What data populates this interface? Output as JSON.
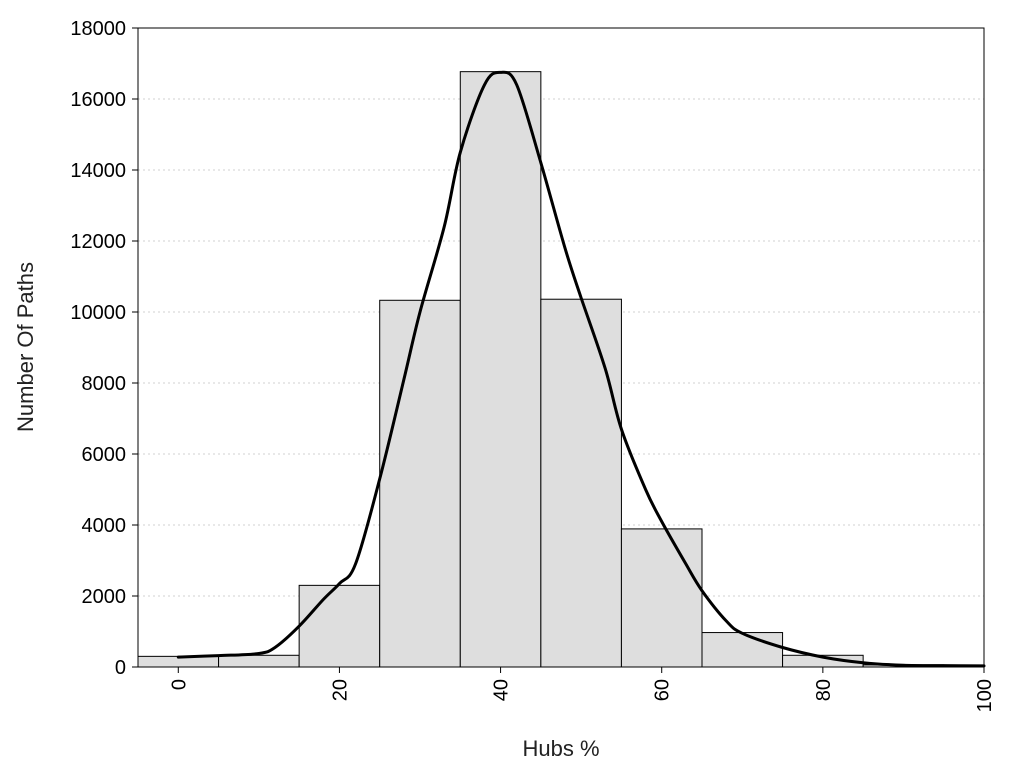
{
  "chart_data": {
    "type": "bar",
    "xlabel": "Hubs %",
    "ylabel": "Number Of Paths",
    "xlim": [
      -5,
      100
    ],
    "ylim": [
      0,
      18000
    ],
    "xticks": [
      0,
      20,
      40,
      60,
      80,
      100
    ],
    "yticks": [
      0,
      2000,
      4000,
      6000,
      8000,
      10000,
      12000,
      14000,
      16000,
      18000
    ],
    "grid": "horizontal-dotted",
    "bins": [
      {
        "x0": -5,
        "x1": 5,
        "value": 300
      },
      {
        "x0": 5,
        "x1": 15,
        "value": 330
      },
      {
        "x0": 15,
        "x1": 25,
        "value": 2300
      },
      {
        "x0": 25,
        "x1": 35,
        "value": 10330
      },
      {
        "x0": 35,
        "x1": 45,
        "value": 16770
      },
      {
        "x0": 45,
        "x1": 55,
        "value": 10360
      },
      {
        "x0": 55,
        "x1": 65,
        "value": 3890
      },
      {
        "x0": 65,
        "x1": 75,
        "value": 970
      },
      {
        "x0": 75,
        "x1": 85,
        "value": 330
      },
      {
        "x0": 85,
        "x1": 95,
        "value": 60
      },
      {
        "x0": 95,
        "x1": 100,
        "value": 30
      }
    ],
    "density_curve": {
      "x": [
        0,
        5,
        10,
        12,
        15,
        18,
        20,
        22,
        25,
        28,
        30,
        33,
        35,
        38,
        40,
        42,
        45,
        48,
        50,
        53,
        55,
        58,
        60,
        63,
        65,
        68,
        70,
        75,
        80,
        85,
        90,
        95,
        100
      ],
      "y": [
        280,
        320,
        380,
        550,
        1150,
        1900,
        2350,
        2900,
        5300,
        8100,
        10000,
        12400,
        14500,
        16400,
        16750,
        16400,
        14200,
        11800,
        10400,
        8400,
        6700,
        5000,
        4100,
        2900,
        2150,
        1300,
        950,
        550,
        280,
        120,
        50,
        40,
        30
      ]
    }
  }
}
